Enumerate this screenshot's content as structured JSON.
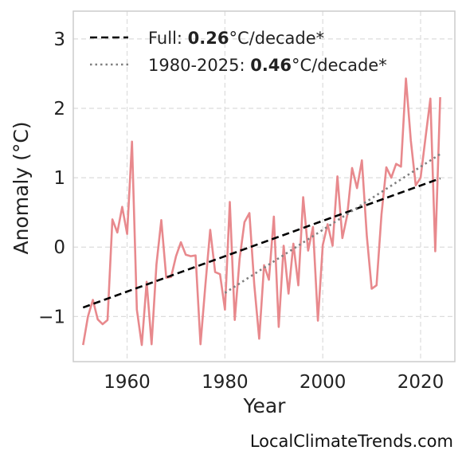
{
  "chart_data": {
    "type": "line",
    "title": "",
    "xlabel": "Year",
    "ylabel": "Anomaly (°C)",
    "xlim": [
      1949,
      2027
    ],
    "ylim": [
      -1.65,
      3.4
    ],
    "x_ticks": [
      1960,
      1980,
      2000,
      2020
    ],
    "y_ticks": [
      -1,
      0,
      1,
      2,
      3
    ],
    "x_tick_labels": [
      "1960",
      "1980",
      "2000",
      "2020"
    ],
    "y_tick_labels": [
      "−1",
      "0",
      "1",
      "2",
      "3"
    ],
    "grid": true,
    "legend_position": "top-left",
    "series": [
      {
        "color": "#e8898d",
        "x": [
          1951,
          1952,
          1953,
          1954,
          1955,
          1956,
          1957,
          1958,
          1959,
          1960,
          1961,
          1962,
          1963,
          1964,
          1965,
          1966,
          1967,
          1968,
          1969,
          1970,
          1971,
          1972,
          1973,
          1974,
          1975,
          1976,
          1977,
          1978,
          1979,
          1980,
          1981,
          1982,
          1983,
          1984,
          1985,
          1986,
          1987,
          1988,
          1989,
          1990,
          1991,
          1992,
          1993,
          1994,
          1995,
          1996,
          1997,
          1998,
          1999,
          2000,
          2001,
          2002,
          2003,
          2004,
          2005,
          2006,
          2007,
          2008,
          2009,
          2010,
          2011,
          2012,
          2013,
          2014,
          2015,
          2016,
          2017,
          2018,
          2019,
          2020,
          2021,
          2022,
          2023,
          2024
        ],
        "y": [
          -1.41,
          -1.0,
          -0.76,
          -1.04,
          -1.11,
          -1.05,
          0.4,
          0.21,
          0.58,
          0.19,
          1.52,
          -0.9,
          -1.41,
          -0.5,
          -1.4,
          -0.25,
          0.39,
          -0.44,
          -0.43,
          -0.13,
          0.07,
          -0.11,
          -0.13,
          -0.12,
          -1.4,
          -0.55,
          0.25,
          -0.36,
          -0.39,
          -0.9,
          0.65,
          -1.05,
          -0.17,
          0.36,
          0.49,
          -0.54,
          -1.32,
          -0.26,
          -0.47,
          0.44,
          -1.15,
          0.02,
          -0.67,
          0.05,
          -0.55,
          0.72,
          -0.05,
          0.29,
          -1.06,
          0.03,
          0.33,
          0.02,
          1.02,
          0.13,
          0.46,
          1.14,
          0.85,
          1.25,
          0.16,
          -0.6,
          -0.55,
          0.47,
          1.15,
          1.0,
          1.2,
          1.16,
          2.43,
          1.54,
          0.89,
          1.0,
          1.58,
          2.14,
          -0.06,
          2.16
        ]
      }
    ],
    "trend_lines": [
      {
        "style": "dashed",
        "color": "#000000",
        "x": [
          1951,
          2024
        ],
        "y": [
          -0.87,
          0.99
        ],
        "legend_prefix": "Full: ",
        "legend_value": "0.26",
        "legend_suffix": "°C/decade*"
      },
      {
        "style": "dotted",
        "color": "#808080",
        "x": [
          1980,
          2024
        ],
        "y": [
          -0.66,
          1.34
        ],
        "legend_prefix": "1980-2025: ",
        "legend_value": "0.46",
        "legend_suffix": "°C/decade*"
      }
    ]
  },
  "watermark": "LocalClimateTrends.com"
}
